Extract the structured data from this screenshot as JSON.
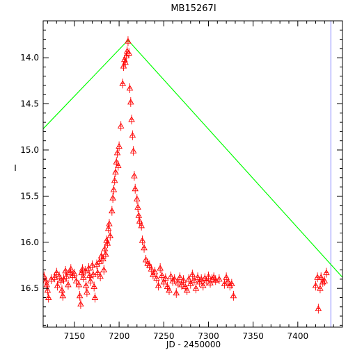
{
  "chart_data": {
    "type": "scatter",
    "title": "MB15267I",
    "xlabel": "JD - 2450000",
    "ylabel": "I",
    "xlim": [
      7115,
      7450
    ],
    "ylim": [
      16.92,
      13.6
    ],
    "y_inverted": true,
    "grid": false,
    "x_ticks": [
      7150,
      7200,
      7250,
      7300,
      7350,
      7400
    ],
    "y_ticks": [
      14.0,
      14.5,
      15.0,
      15.5,
      16.0,
      16.5
    ],
    "x_tick_labels": [
      "7150",
      "7200",
      "7250",
      "7300",
      "7350",
      "7400"
    ],
    "y_tick_labels": [
      "14.0",
      "14.5",
      "15.0",
      "15.5",
      "16.0",
      "16.5"
    ],
    "colors": {
      "points": "#ff0000",
      "model": "#00ff00",
      "marker_line": "#8888ff",
      "axes": "#000000"
    },
    "series": [
      {
        "marker": "triangle-plus-errorbar",
        "points": [
          [
            7116,
            16.37
          ],
          [
            7118,
            16.42
          ],
          [
            7119,
            16.46
          ],
          [
            7120,
            16.52
          ],
          [
            7121,
            16.6
          ],
          [
            7124,
            16.4
          ],
          [
            7128,
            16.38
          ],
          [
            7130,
            16.33
          ],
          [
            7131,
            16.47
          ],
          [
            7133,
            16.37
          ],
          [
            7135,
            16.41
          ],
          [
            7136,
            16.52
          ],
          [
            7137,
            16.58
          ],
          [
            7138,
            16.4
          ],
          [
            7140,
            16.31
          ],
          [
            7141,
            16.37
          ],
          [
            7143,
            16.46
          ],
          [
            7145,
            16.33
          ],
          [
            7146,
            16.29
          ],
          [
            7148,
            16.36
          ],
          [
            7150,
            16.34
          ],
          [
            7152,
            16.42
          ],
          [
            7155,
            16.46
          ],
          [
            7156,
            16.58
          ],
          [
            7157,
            16.67
          ],
          [
            7158,
            16.33
          ],
          [
            7159,
            16.29
          ],
          [
            7160,
            16.38
          ],
          [
            7162,
            16.31
          ],
          [
            7163,
            16.47
          ],
          [
            7164,
            16.54
          ],
          [
            7166,
            16.28
          ],
          [
            7167,
            16.36
          ],
          [
            7168,
            16.42
          ],
          [
            7170,
            16.25
          ],
          [
            7171,
            16.35
          ],
          [
            7172,
            16.48
          ],
          [
            7173,
            16.6
          ],
          [
            7175,
            16.24
          ],
          [
            7176,
            16.33
          ],
          [
            7178,
            16.21
          ],
          [
            7179,
            16.37
          ],
          [
            7180,
            16.15
          ],
          [
            7182,
            16.18
          ],
          [
            7183,
            16.3
          ],
          [
            7184,
            16.07
          ],
          [
            7185,
            16.13
          ],
          [
            7186,
            15.98
          ],
          [
            7187,
            16.01
          ],
          [
            7188,
            15.85
          ],
          [
            7189,
            15.8
          ],
          [
            7190,
            15.93
          ],
          [
            7192,
            15.66
          ],
          [
            7193,
            15.52
          ],
          [
            7194,
            15.43
          ],
          [
            7195,
            15.33
          ],
          [
            7196,
            15.24
          ],
          [
            7197,
            15.13
          ],
          [
            7198,
            15.03
          ],
          [
            7199,
            15.17
          ],
          [
            7200,
            14.96
          ],
          [
            7202,
            14.74
          ],
          [
            7204,
            14.28
          ],
          [
            7205,
            14.09
          ],
          [
            7206,
            14.02
          ],
          [
            7207,
            14.05
          ],
          [
            7208,
            13.98
          ],
          [
            7209,
            13.93
          ],
          [
            7210,
            13.82
          ],
          [
            7211,
            13.95
          ],
          [
            7212,
            14.33
          ],
          [
            7213,
            14.48
          ],
          [
            7214,
            14.67
          ],
          [
            7215,
            14.84
          ],
          [
            7216,
            15.01
          ],
          [
            7217,
            15.28
          ],
          [
            7218,
            15.42
          ],
          [
            7220,
            15.53
          ],
          [
            7221,
            15.62
          ],
          [
            7222,
            15.71
          ],
          [
            7223,
            15.77
          ],
          [
            7225,
            15.82
          ],
          [
            7226,
            15.98
          ],
          [
            7228,
            16.06
          ],
          [
            7230,
            16.19
          ],
          [
            7232,
            16.23
          ],
          [
            7234,
            16.25
          ],
          [
            7236,
            16.29
          ],
          [
            7238,
            16.35
          ],
          [
            7240,
            16.32
          ],
          [
            7242,
            16.39
          ],
          [
            7244,
            16.47
          ],
          [
            7246,
            16.28
          ],
          [
            7248,
            16.36
          ],
          [
            7250,
            16.43
          ],
          [
            7252,
            16.39
          ],
          [
            7254,
            16.48
          ],
          [
            7256,
            16.52
          ],
          [
            7258,
            16.37
          ],
          [
            7260,
            16.42
          ],
          [
            7262,
            16.4
          ],
          [
            7264,
            16.55
          ],
          [
            7266,
            16.44
          ],
          [
            7268,
            16.38
          ],
          [
            7270,
            16.46
          ],
          [
            7272,
            16.41
          ],
          [
            7274,
            16.48
          ],
          [
            7276,
            16.52
          ],
          [
            7278,
            16.4
          ],
          [
            7280,
            16.45
          ],
          [
            7282,
            16.35
          ],
          [
            7284,
            16.41
          ],
          [
            7286,
            16.5
          ],
          [
            7288,
            16.38
          ],
          [
            7290,
            16.43
          ],
          [
            7292,
            16.4
          ],
          [
            7294,
            16.47
          ],
          [
            7296,
            16.39
          ],
          [
            7298,
            16.42
          ],
          [
            7300,
            16.37
          ],
          [
            7302,
            16.44
          ],
          [
            7304,
            16.4
          ],
          [
            7306,
            16.38
          ],
          [
            7308,
            16.41
          ],
          [
            7312,
            16.4
          ],
          [
            7318,
            16.45
          ],
          [
            7320,
            16.38
          ],
          [
            7322,
            16.43
          ],
          [
            7324,
            16.47
          ],
          [
            7326,
            16.45
          ],
          [
            7328,
            16.58
          ],
          [
            7420,
            16.47
          ],
          [
            7422,
            16.38
          ],
          [
            7423,
            16.72
          ],
          [
            7425,
            16.5
          ],
          [
            7426,
            16.38
          ],
          [
            7428,
            16.43
          ],
          [
            7430,
            16.42
          ],
          [
            7432,
            16.33
          ]
        ]
      },
      {
        "name": "",
        "marker": "line",
        "points": [
          [
            7115,
            14.77
          ],
          [
            7210,
            13.81
          ],
          [
            7450,
            16.38
          ]
        ]
      }
    ],
    "vertical_marker_x": 7437
  }
}
